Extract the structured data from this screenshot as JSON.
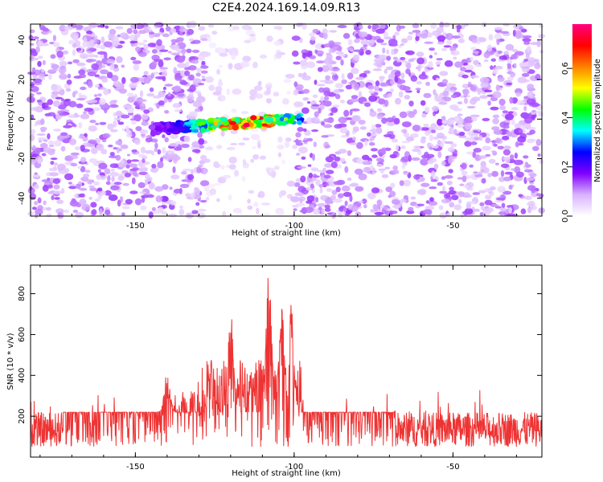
{
  "title": "C2E4.2024.169.14.09.R13",
  "chart_data": [
    {
      "type": "heatmap",
      "xlabel": "Height of straight line (km)",
      "ylabel": "Frequency (Hz)",
      "xlim": [
        -183,
        -22
      ],
      "ylim": [
        -49,
        48
      ],
      "xticks": [
        "-150",
        "-100",
        "-50"
      ],
      "yticks": [
        "-40",
        "-20",
        "0",
        "20",
        "40"
      ],
      "colorbar": {
        "label": "Normalized spectral amplitude",
        "ticks": [
          "0.0",
          "0.2",
          "0.4",
          "0.6"
        ],
        "range": [
          0,
          0.78
        ],
        "colors": [
          "#ffffff",
          "#d9b3ff",
          "#8000ff",
          "#0000ff",
          "#00ffff",
          "#00ff00",
          "#ffff00",
          "#ff8000",
          "#ff0000",
          "#ff0080"
        ]
      },
      "signal_band": {
        "x_range": [
          -145,
          -98
        ],
        "freq_start": -5,
        "freq_end": 0,
        "peak_value": 0.75,
        "peak_x": -115
      },
      "quiet_region": [
        -128,
        -100
      ],
      "noise_level": 0.1,
      "grid": false
    },
    {
      "type": "line",
      "xlabel": "Height of straight line (km)",
      "ylabel": "SNR (10 * v/v)",
      "xlim": [
        -183,
        -22
      ],
      "ylim": [
        0,
        940
      ],
      "xticks": [
        "-150",
        "-100",
        "-50"
      ],
      "yticks": [
        "200",
        "400",
        "600",
        "800"
      ],
      "color": "#ee3333",
      "baseline": [
        50,
        220
      ],
      "peaks": [
        {
          "x": -108,
          "y": 930
        },
        {
          "x": -104,
          "y": 760
        },
        {
          "x": -101,
          "y": 745
        },
        {
          "x": -120,
          "y": 725
        },
        {
          "x": -126,
          "y": 520
        },
        {
          "x": -140,
          "y": 420
        }
      ],
      "grid": false
    }
  ]
}
